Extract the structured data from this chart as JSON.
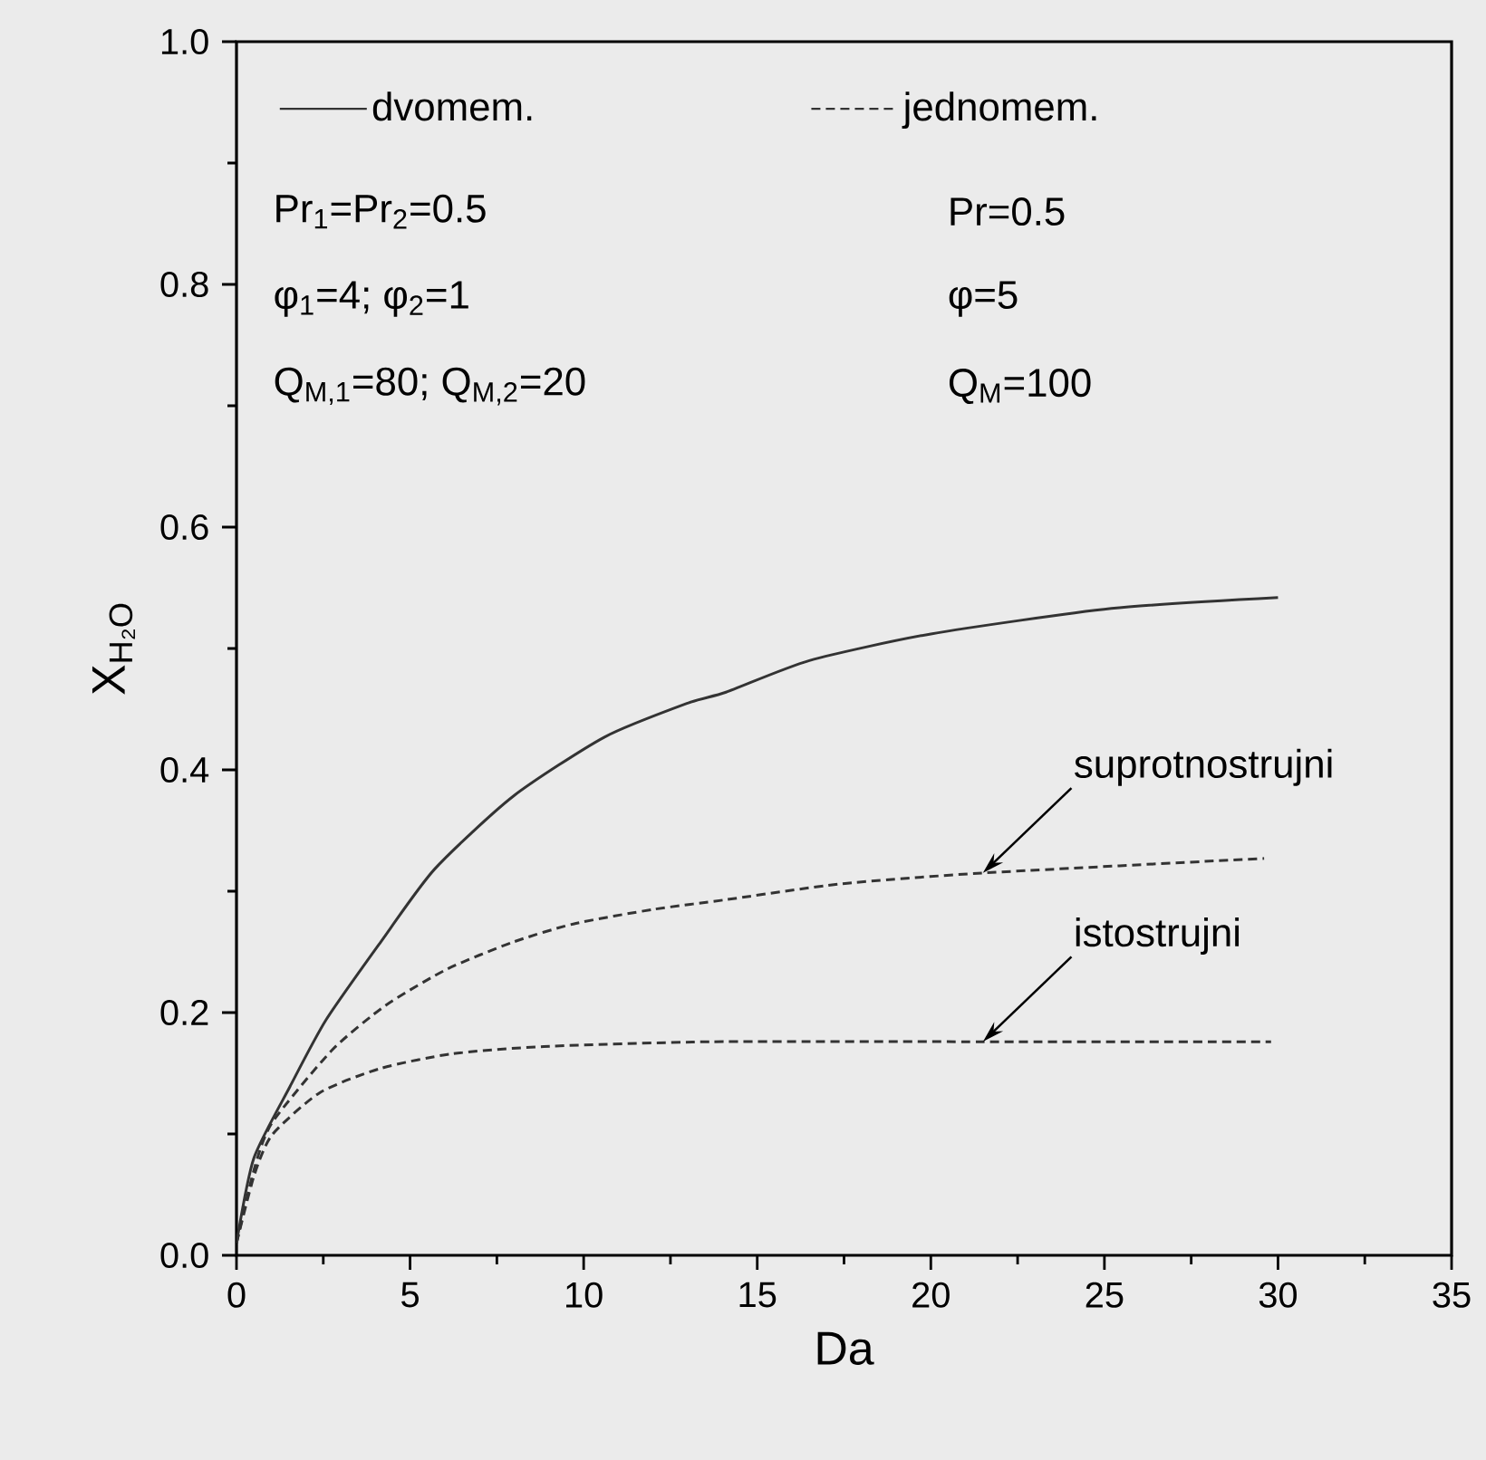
{
  "chart_data": {
    "type": "line",
    "xlabel": "Da",
    "ylabel": "X$_{H₂O}$",
    "xlim": [
      0,
      35
    ],
    "ylim": [
      0,
      1
    ],
    "xticks": [
      0,
      5,
      10,
      15,
      20,
      25,
      30,
      35
    ],
    "yticks": [
      {
        "value": 0,
        "label": "0.0"
      },
      {
        "value": 0.2,
        "label": "0.2"
      },
      {
        "value": 0.4,
        "label": "0.4"
      },
      {
        "value": 0.6,
        "label": "0.6"
      },
      {
        "value": 0.8,
        "label": "0.8"
      },
      {
        "value": 1,
        "label": "1.0"
      }
    ],
    "legend": "top",
    "grid": false,
    "marker": "none",
    "series": [
      {
        "name": "dvomem.",
        "color": "#333333",
        "line_style": "solid",
        "x": [
          0,
          0.5,
          1.54,
          2.58,
          4.15,
          5.7,
          7.96,
          10.6,
          13.0,
          14.1,
          16.5,
          20.0,
          25.2,
          30
        ],
        "values": [
          0.01,
          0.08,
          0.139,
          0.194,
          0.258,
          0.318,
          0.378,
          0.427,
          0.455,
          0.464,
          0.49,
          0.512,
          0.533,
          0.542
        ]
      },
      {
        "name": "jednomem.",
        "color": "#333333",
        "line_style": "dashed",
        "x": [
          0,
          0.5,
          1.02,
          2.75,
          4.3,
          6.08,
          7.96,
          9.7,
          12.0,
          14.1,
          17.4,
          21.5,
          29.6
        ],
        "values": [
          0.01,
          0.07,
          0.109,
          0.169,
          0.206,
          0.236,
          0.258,
          0.273,
          0.285,
          0.293,
          0.306,
          0.315,
          0.327
        ]
      },
      {
        "color": "#333333",
        "line_style": "dashed",
        "x": [
          0,
          0.5,
          1.02,
          2.4,
          4.15,
          6.2,
          8.85,
          13.7,
          21.5,
          29.8
        ],
        "values": [
          0.01,
          0.065,
          0.099,
          0.134,
          0.154,
          0.166,
          0.172,
          0.176,
          0.176,
          0.176
        ]
      }
    ],
    "annotations": [
      "Pr$_{1}$=Pr$_{2}$=0.5",
      "φ$_{1}$=4; φ$_{2}$=1",
      "Q$_{M,1}$=80; Q$_{M,2}$=20",
      "Pr=0.5",
      "φ=5",
      "Q$_{M}$=100",
      {
        "text": "suprotnostrujni",
        "x": 21.5,
        "y": 0.315
      },
      {
        "text": "istostrujni",
        "x": 21.5,
        "y": 0.176
      }
    ]
  }
}
